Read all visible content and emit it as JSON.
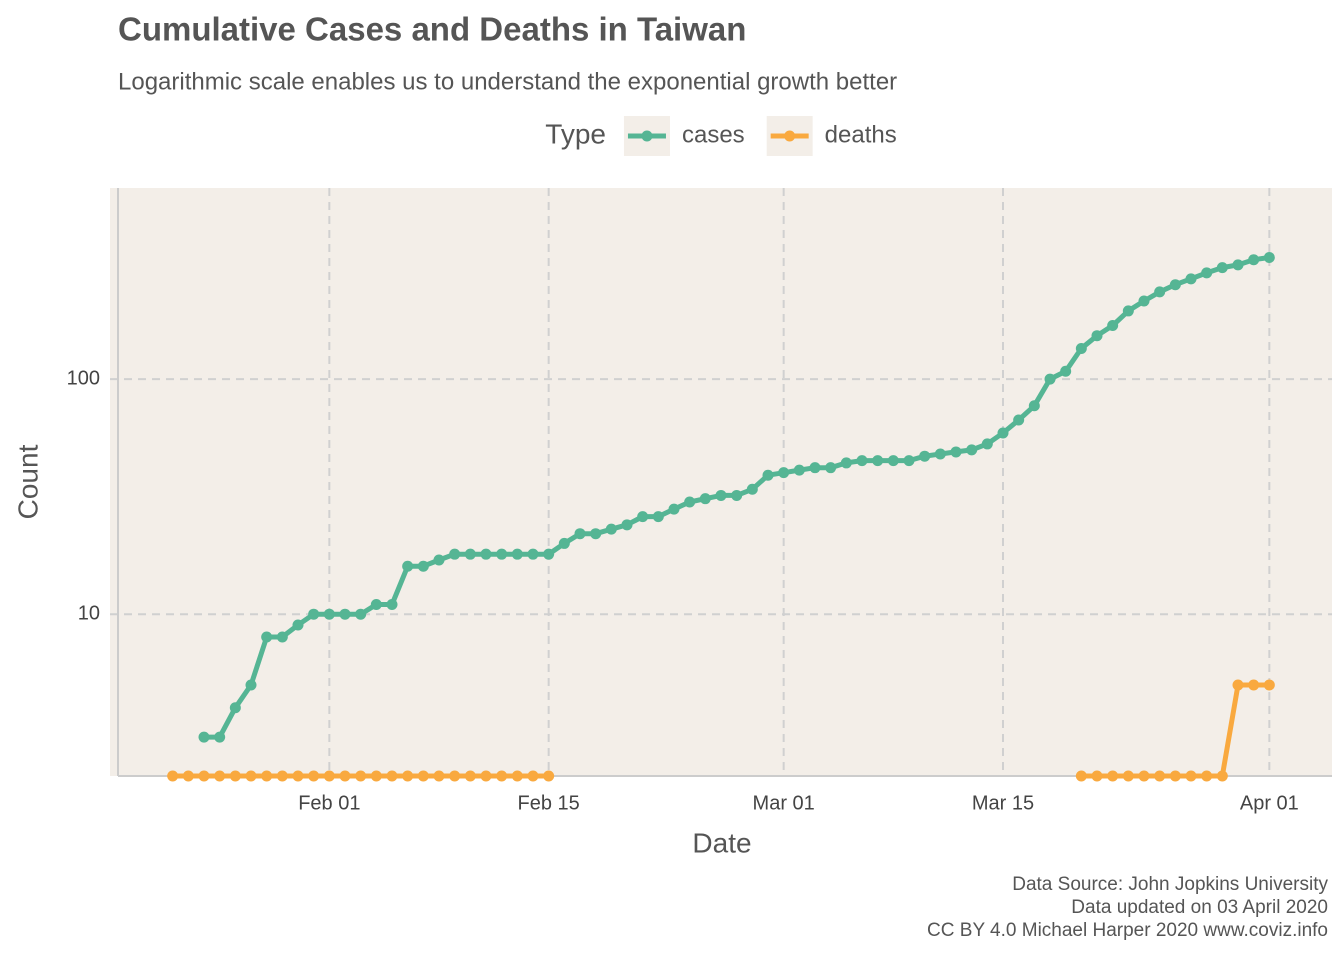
{
  "chart_data": {
    "type": "line",
    "title": "Cumulative Cases and Deaths in Taiwan",
    "subtitle": "Logarithmic scale enables us to understand the exponential growth better",
    "xlabel": "Date",
    "ylabel": "Count",
    "legend_title": "Type",
    "legend_position": "top",
    "caption": [
      "Data Source: John Jopkins University",
      "Data updated on 03 April 2020",
      "CC BY 4.0 Michael Harper 2020 www.coviz.info"
    ],
    "log_y": true,
    "grid": true,
    "x": [
      "Jan 22",
      "Jan 23",
      "Jan 24",
      "Jan 25",
      "Jan 26",
      "Jan 27",
      "Jan 28",
      "Jan 29",
      "Jan 30",
      "Jan 31",
      "Feb 01",
      "Feb 02",
      "Feb 03",
      "Feb 04",
      "Feb 05",
      "Feb 06",
      "Feb 07",
      "Feb 08",
      "Feb 09",
      "Feb 10",
      "Feb 11",
      "Feb 12",
      "Feb 13",
      "Feb 14",
      "Feb 15",
      "Feb 16",
      "Feb 17",
      "Feb 18",
      "Feb 19",
      "Feb 20",
      "Feb 21",
      "Feb 22",
      "Feb 23",
      "Feb 24",
      "Feb 25",
      "Feb 26",
      "Feb 27",
      "Feb 28",
      "Feb 29",
      "Mar 01",
      "Mar 02",
      "Mar 03",
      "Mar 04",
      "Mar 05",
      "Mar 06",
      "Mar 07",
      "Mar 08",
      "Mar 09",
      "Mar 10",
      "Mar 11",
      "Mar 12",
      "Mar 13",
      "Mar 14",
      "Mar 15",
      "Mar 16",
      "Mar 17",
      "Mar 18",
      "Mar 19",
      "Mar 20",
      "Mar 21",
      "Mar 22",
      "Mar 23",
      "Mar 24",
      "Mar 25",
      "Mar 26",
      "Mar 27",
      "Mar 28",
      "Mar 29",
      "Mar 30",
      "Mar 31",
      "Apr 01"
    ],
    "series": [
      {
        "name": "cases",
        "color": "#55b594",
        "values": [
          null,
          null,
          3,
          3,
          4,
          5,
          8,
          8,
          9,
          10,
          10,
          10,
          10,
          11,
          11,
          16,
          16,
          17,
          18,
          18,
          18,
          18,
          18,
          18,
          18,
          20,
          22,
          22,
          23,
          24,
          26,
          26,
          28,
          30,
          31,
          32,
          32,
          34,
          39,
          40,
          41,
          42,
          42,
          44,
          45,
          45,
          45,
          45,
          47,
          48,
          49,
          50,
          53,
          59,
          67,
          77,
          100,
          108,
          135,
          153,
          169,
          195,
          215,
          235,
          252,
          267,
          283,
          298,
          306,
          322,
          329
        ]
      },
      {
        "name": "deaths",
        "color": "#f9a93f",
        "values": [
          0,
          0,
          0,
          0,
          0,
          0,
          0,
          0,
          0,
          0,
          0,
          0,
          0,
          0,
          0,
          0,
          0,
          0,
          0,
          0,
          0,
          0,
          0,
          0,
          0,
          null,
          null,
          null,
          null,
          null,
          null,
          null,
          null,
          null,
          null,
          null,
          null,
          null,
          null,
          null,
          null,
          null,
          null,
          null,
          null,
          null,
          null,
          null,
          null,
          null,
          null,
          null,
          null,
          null,
          null,
          null,
          null,
          null,
          0,
          0,
          0,
          0,
          0,
          0,
          0,
          0,
          0,
          0,
          5,
          5,
          5
        ]
      }
    ],
    "xlim": [
      "Jan 18",
      "Apr 05"
    ],
    "xticks": [
      "Feb 01",
      "Feb 15",
      "Mar 01",
      "Mar 15",
      "Apr 01"
    ],
    "ylim": [
      2.05,
      650
    ],
    "yticks": [
      10,
      100
    ]
  }
}
